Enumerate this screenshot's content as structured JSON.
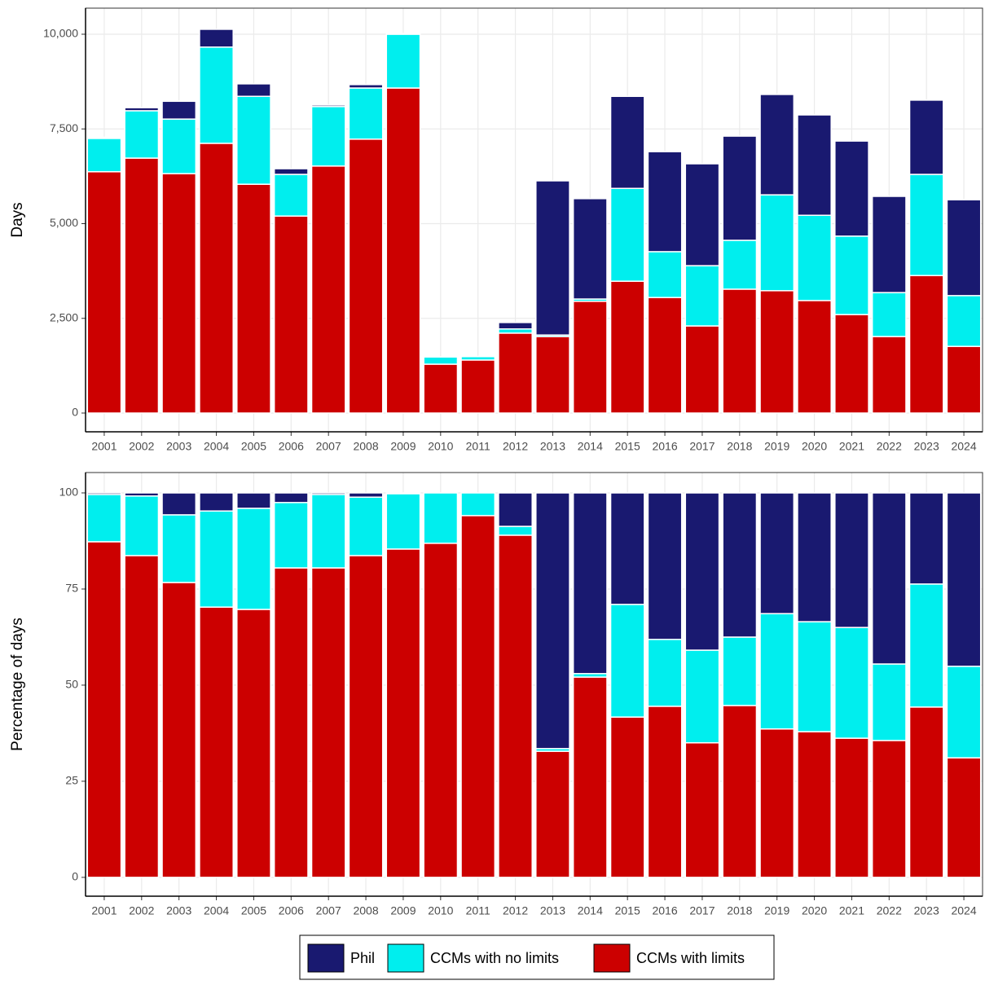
{
  "chart_data": [
    {
      "type": "stacked_bar",
      "ylabel": "Days",
      "categories": [
        "2001",
        "2002",
        "2003",
        "2004",
        "2005",
        "2006",
        "2007",
        "2008",
        "2009",
        "2010",
        "2011",
        "2012",
        "2013",
        "2014",
        "2015",
        "2016",
        "2017",
        "2018",
        "2019",
        "2020",
        "2021",
        "2022",
        "2023",
        "2024"
      ],
      "series": [
        {
          "name": "Phil",
          "color": "#191970",
          "values": [
            30,
            80,
            470,
            470,
            330,
            150,
            40,
            90,
            20,
            0,
            5,
            170,
            4070,
            2650,
            2430,
            2640,
            2690,
            2750,
            2650,
            2650,
            2510,
            2540,
            1960,
            2530
          ]
        },
        {
          "name": "CCMs with no limits",
          "color": "#00eeee",
          "values": [
            880,
            1250,
            1440,
            2540,
            2320,
            1100,
            1570,
            1350,
            1420,
            190,
            90,
            110,
            40,
            60,
            2450,
            1210,
            1590,
            1290,
            2530,
            2250,
            2070,
            1160,
            2670,
            1340
          ]
        },
        {
          "name": "CCMs with limits",
          "color": "#cc0000",
          "values": [
            6370,
            6730,
            6320,
            7120,
            6040,
            5200,
            6520,
            7230,
            8580,
            1290,
            1400,
            2110,
            2020,
            2950,
            3480,
            3050,
            2300,
            3270,
            3230,
            2970,
            2600,
            2020,
            3630,
            1760
          ]
        }
      ],
      "ylim": [
        -495,
        10688
      ],
      "yticks": [
        0,
        {
          "value": 2500,
          "label": "2,500"
        },
        {
          "value": 5000,
          "label": "5,000"
        },
        {
          "value": 7500,
          "label": "7,500"
        },
        {
          "value": 10000,
          "label": "10,000"
        }
      ],
      "grid": true,
      "legend": "bottom"
    },
    {
      "type": "stacked_bar",
      "ylabel": "Percentage of days",
      "categories": [
        "2001",
        "2002",
        "2003",
        "2004",
        "2005",
        "2006",
        "2007",
        "2008",
        "2009",
        "2010",
        "2011",
        "2012",
        "2013",
        "2014",
        "2015",
        "2016",
        "2017",
        "2018",
        "2019",
        "2020",
        "2021",
        "2022",
        "2023",
        "2024"
      ],
      "series": [
        {
          "color": "#191970",
          "values": [
            0.4,
            0.8,
            5.7,
            4.7,
            4.0,
            2.5,
            0.4,
            1.1,
            0.2,
            0,
            0,
            8.7,
            66.5,
            47.0,
            29.0,
            38.1,
            40.9,
            37.5,
            31.4,
            33.5,
            35.0,
            44.5,
            23.7,
            45.1
          ]
        },
        {
          "color": "#00eeee",
          "values": [
            12.3,
            15.5,
            17.6,
            25.0,
            26.3,
            17.0,
            19.1,
            15.2,
            14.4,
            13.1,
            5.9,
            2.3,
            0.7,
            0.9,
            29.3,
            17.4,
            24.1,
            17.8,
            30.0,
            28.6,
            28.8,
            19.9,
            32.0,
            23.8
          ]
        },
        {
          "color": "#cc0000",
          "values": [
            87.3,
            83.7,
            76.7,
            70.3,
            69.7,
            80.5,
            80.5,
            83.7,
            85.4,
            86.9,
            94.1,
            89.0,
            32.8,
            52.1,
            41.7,
            44.5,
            35.0,
            44.7,
            38.6,
            37.9,
            36.2,
            35.6,
            44.3,
            31.1
          ]
        }
      ],
      "ylim": [
        -4.9,
        105.3
      ],
      "yticks": [
        0,
        25,
        50,
        75,
        100
      ],
      "grid": true
    }
  ]
}
